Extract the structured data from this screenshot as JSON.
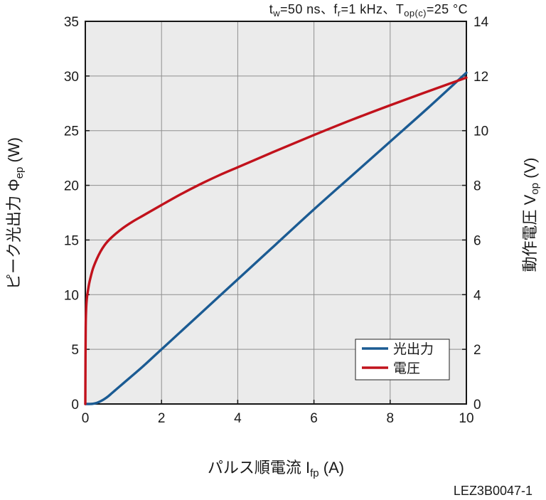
{
  "chart_data": {
    "type": "line",
    "title": [
      {
        "base": "t",
        "sub": "w",
        "rest": "=50 ns、"
      },
      {
        "base": "f",
        "sub": "r",
        "rest": "=1 kHz、"
      },
      {
        "base": "T",
        "sub": "op(c)",
        "rest": "=25 °C"
      }
    ],
    "xlabel": {
      "base": "パルス順電流 I",
      "sub": "fp",
      "rest": " (A)"
    },
    "ylabel": {
      "base": "ピーク光出力 Φ",
      "sub": "ep",
      "rest": " (W)"
    },
    "y2label": {
      "base": "動作電圧 V",
      "sub": "op",
      "rest": " (V)"
    },
    "xlim": [
      0,
      10
    ],
    "ylim": [
      0,
      35
    ],
    "y2lim": [
      0,
      14
    ],
    "xticks": [
      0,
      2,
      4,
      6,
      8,
      10
    ],
    "yticks": [
      0,
      5,
      10,
      15,
      20,
      25,
      30,
      35
    ],
    "y2ticks": [
      0,
      2,
      4,
      6,
      8,
      10,
      12,
      14
    ],
    "grid": true,
    "legend": "bottom-right",
    "series": [
      {
        "name": "光出力",
        "yaxis": "left",
        "color": "#1b5b93",
        "x": [
          0,
          0.1,
          0.2,
          0.3,
          0.4,
          0.5,
          0.6,
          0.7,
          0.8,
          1,
          1.5,
          2,
          3,
          4,
          5,
          6,
          7,
          8,
          9,
          10
        ],
        "y": [
          0,
          0,
          0.02,
          0.1,
          0.25,
          0.45,
          0.7,
          1.0,
          1.3,
          1.9,
          3.4,
          5.0,
          8.2,
          11.4,
          14.6,
          17.8,
          20.9,
          24.0,
          27.1,
          30.3
        ]
      },
      {
        "name": "電圧",
        "yaxis": "right",
        "color": "#c1121c",
        "x": [
          0,
          0.005,
          0.01,
          0.02,
          0.04,
          0.07,
          0.1,
          0.15,
          0.2,
          0.3,
          0.4,
          0.5,
          0.6,
          0.8,
          1,
          1.25,
          1.5,
          2,
          2.5,
          3,
          3.5,
          4,
          5,
          6,
          7,
          8,
          9,
          10
        ],
        "y": [
          0,
          1.8,
          2.8,
          3.4,
          3.85,
          4.15,
          4.4,
          4.7,
          4.95,
          5.3,
          5.58,
          5.8,
          5.97,
          6.23,
          6.45,
          6.68,
          6.88,
          7.28,
          7.67,
          8.03,
          8.36,
          8.66,
          9.26,
          9.84,
          10.4,
          10.93,
          11.44,
          11.94
        ]
      }
    ]
  },
  "figure_id": "LEZ3B0047-1",
  "colors": {
    "plot_background": "#ebebeb",
    "grid": "#8f8f8f",
    "frame": "#161616"
  }
}
